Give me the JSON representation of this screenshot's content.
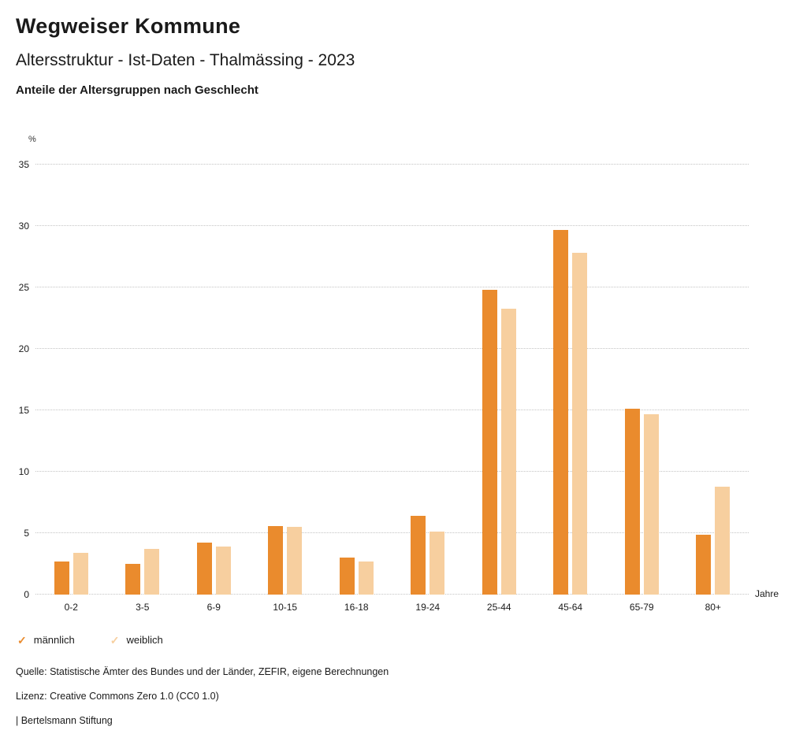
{
  "header": {
    "title": "Wegweiser Kommune",
    "subtitle": "Altersstruktur - Ist-Daten - Thalmässing - 2023",
    "section_title": "Anteile der Altersgruppen nach Geschlecht"
  },
  "chart_data": {
    "type": "bar",
    "categories": [
      "0-2",
      "3-5",
      "6-9",
      "10-15",
      "16-18",
      "19-24",
      "25-44",
      "45-64",
      "65-79",
      "80+"
    ],
    "series": [
      {
        "name": "männlich",
        "color": "#EA8B2D",
        "values": [
          2.7,
          2.5,
          4.2,
          5.6,
          3.0,
          6.4,
          24.8,
          29.7,
          15.1,
          4.9
        ]
      },
      {
        "name": "weiblich",
        "color": "#F7CF9F",
        "values": [
          3.4,
          3.7,
          3.9,
          5.5,
          2.7,
          5.1,
          23.3,
          27.8,
          14.7,
          8.8
        ]
      }
    ],
    "title": "Anteile der Altersgruppen nach Geschlecht",
    "xlabel_unit": "Jahre",
    "ylabel_unit": "%",
    "ylim": [
      0,
      35
    ],
    "ytick_step": 5,
    "grid": "horizontal-dotted",
    "legend_position": "bottom-left"
  },
  "legend": [
    {
      "label": "männlich",
      "color": "#EA8B2D"
    },
    {
      "label": "weiblich",
      "color": "#F7CF9F"
    }
  ],
  "icons": {
    "check": "✓"
  },
  "footer": {
    "source": "Quelle: Statistische Ämter des Bundes und der Länder, ZEFIR, eigene Berechnungen",
    "license": "Lizenz: Creative Commons Zero 1.0 (CC0 1.0)",
    "attribution": "| Bertelsmann Stiftung"
  }
}
